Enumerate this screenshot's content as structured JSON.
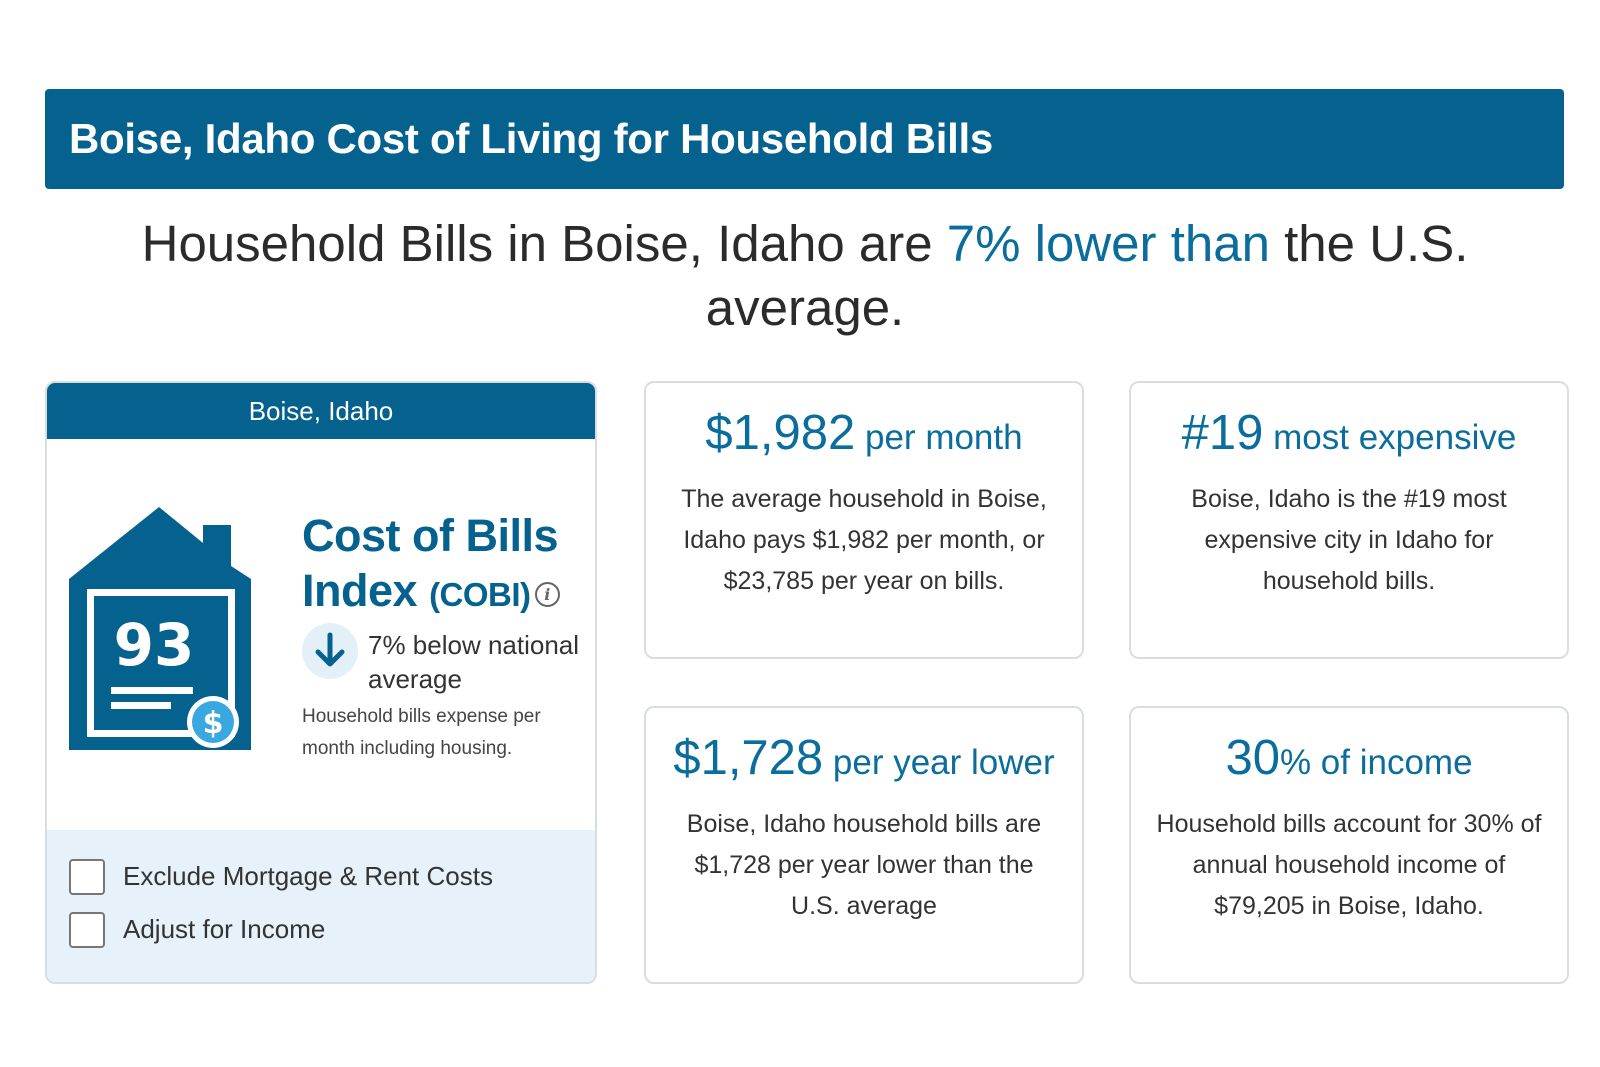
{
  "banner": {
    "title": "Boise, Idaho Cost of Living for Household Bills"
  },
  "headline": {
    "before": "Household Bills in Boise, Idaho are ",
    "highlight": "7% lower than",
    "after": " the U.S. average."
  },
  "cobi": {
    "header": "Boise, Idaho",
    "index_value": "93",
    "title_line1": "Cost of Bills",
    "title_line2": "Index",
    "title_abbr": "(COBI)",
    "below_text": "7% below national average",
    "expense_note": "Household bills expense per month including housing.",
    "options": [
      {
        "label": "Exclude Mortgage & Rent Costs",
        "checked": false
      },
      {
        "label": "Adjust for Income",
        "checked": false
      }
    ]
  },
  "cards": [
    {
      "value": "$1,982",
      "unit": " per month",
      "description": "The average household in Boise, Idaho pays $1,982 per month, or $23,785 per year on bills."
    },
    {
      "value": "#19",
      "unit": " most expensive",
      "description": "Boise, Idaho is the #19 most expensive city in Idaho for household bills."
    },
    {
      "value": "$1,728",
      "unit": " per year lower",
      "description": "Boise, Idaho household bills are $1,728 per year lower than the U.S. average"
    },
    {
      "value": "30",
      "unit": "% of income",
      "description": "Household bills account for 30% of annual household income of $79,205 in Boise, Idaho."
    }
  ],
  "colors": {
    "primary": "#05628f",
    "accent_text": "#0b6d9c",
    "options_bg": "#e6f1fa",
    "dollar_badge": "#3aa8e0"
  },
  "icons": {
    "house": "house-bill-icon",
    "dollar": "dollar-badge-icon",
    "arrow": "arrow-down-icon",
    "info": "info-icon"
  }
}
